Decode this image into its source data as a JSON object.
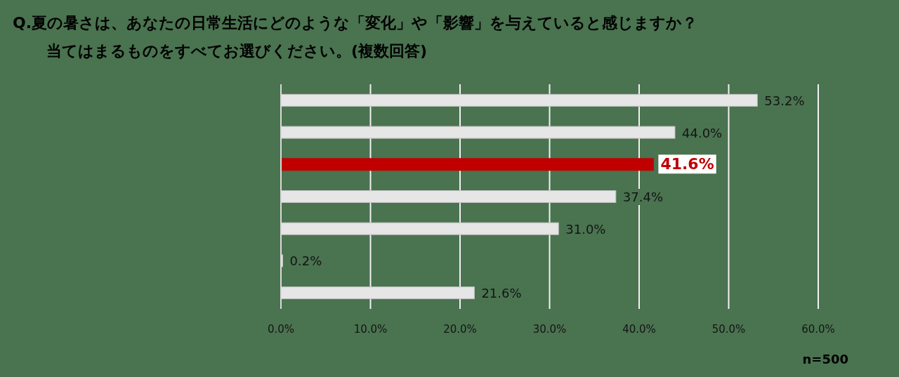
{
  "chart_data": {
    "type": "bar",
    "orientation": "horizontal",
    "title": "Q.夏の暑さは、あなたの日常生活にどのような「変化」や「影響」を与えていると感じますか？",
    "subtitle": "当てはまるものをすべてお選びください。(複数回答)",
    "categories": [
      null,
      null,
      null,
      null,
      null,
      null,
      null
    ],
    "values": [
      53.2,
      44.0,
      41.6,
      37.4,
      31.0,
      0.2,
      21.6
    ],
    "colors": [
      "#e6e6e6",
      "#e6e6e6",
      "#c00000",
      "#e6e6e6",
      "#e6e6e6",
      "#e6e6e6",
      "#e6e6e6"
    ],
    "value_labels": [
      "53.2%",
      "44.0%",
      "41.6%",
      "37.4%",
      "31.0%",
      "0.2%",
      "21.6%"
    ],
    "xlim": [
      0,
      60
    ],
    "xticks": [
      {
        "value": 0,
        "label": "0.0%"
      },
      {
        "value": 10,
        "label": "10.0%"
      },
      {
        "value": 20,
        "label": "20.0%"
      },
      {
        "value": 30,
        "label": "30.0%"
      },
      {
        "value": 40,
        "label": "40.0%"
      },
      {
        "value": 50,
        "label": "50.0%"
      },
      {
        "value": 60,
        "label": "60.0%"
      }
    ],
    "grid": "x",
    "annotations": [
      "n=500"
    ]
  }
}
